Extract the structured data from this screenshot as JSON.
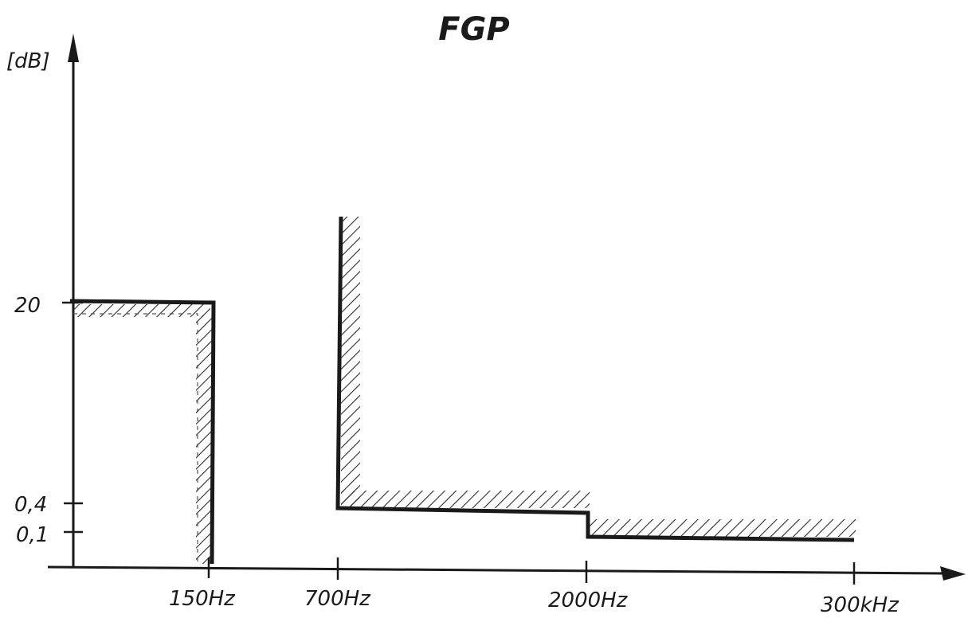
{
  "title": "FGP",
  "y_unit": "[dB]",
  "y_ticks": [
    {
      "label": "20",
      "value": 20
    },
    {
      "label": "0,4",
      "value": 0.4
    },
    {
      "label": "0,1",
      "value": 0.1
    }
  ],
  "x_ticks": [
    {
      "label": "150Hz",
      "value": "150 Hz"
    },
    {
      "label": "700Hz",
      "value": "700 Hz"
    },
    {
      "label": "2000Hz",
      "value": "2000 Hz"
    },
    {
      "label": "300kHz",
      "value": "300 kHz"
    }
  ],
  "colors": {
    "line": "#1a1a1a",
    "hatch": "#2a2a2a",
    "background": "#ffffff"
  }
}
